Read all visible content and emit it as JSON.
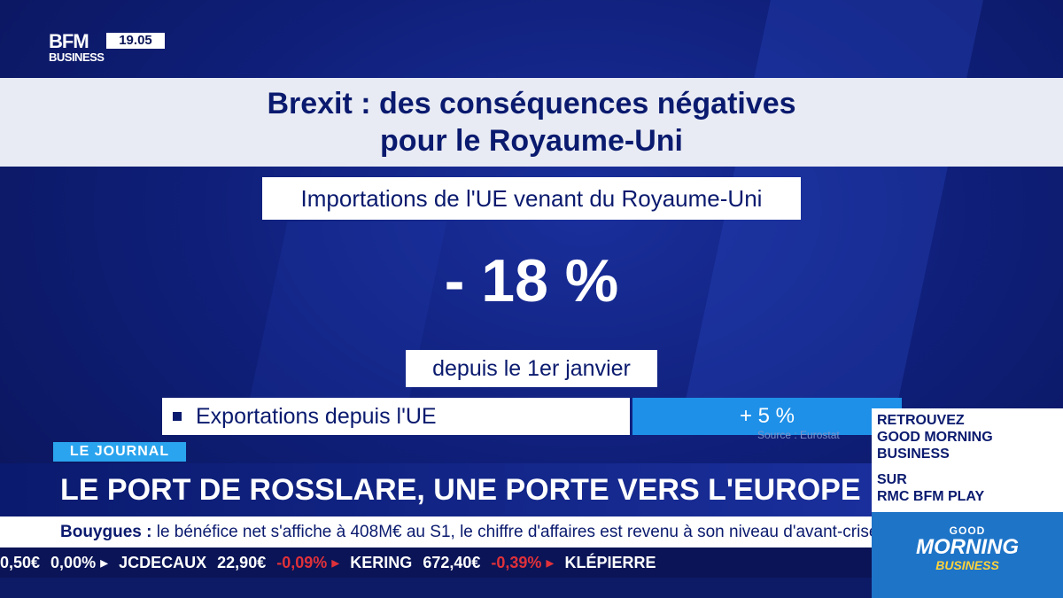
{
  "channel": {
    "logo_top": "BFM",
    "logo_bottom": "BUSINESS",
    "clock": "19.05"
  },
  "graphic": {
    "title_line1": "Brexit : des conséquences négatives",
    "title_line2": "pour le Royaume-Uni",
    "subtitle": "Importations de l'UE venant du Royaume-Uni",
    "big_value": "- 18 %",
    "since": "depuis le 1er janvier",
    "export_label": "Exportations depuis l'UE",
    "export_value": "+ 5 %",
    "source": "Source : Eurostat"
  },
  "promo": {
    "line1": "RETROUVEZ",
    "line2": "GOOD MORNING",
    "line3": "BUSINESS",
    "line4": "SUR",
    "line5": "RMC BFM PLAY",
    "logo_good": "GOOD",
    "logo_morning": "MORNING",
    "logo_business": "BUSINESS"
  },
  "lower_third": {
    "tag": "LE JOURNAL",
    "headline": "LE PORT DE ROSSLARE, UNE PORTE VERS L'EUROPE"
  },
  "news_ticker": {
    "company": "Bouygues :",
    "text": "le bénéfice net s'affiche à 408M€ au S1, le chiffre d'affaires est revenu à son niveau d'avant-crise."
  },
  "stock_ticker": {
    "items": [
      {
        "text": "0,50€",
        "cls": "pos"
      },
      {
        "text": "0,00% ▸",
        "cls": "pos"
      },
      {
        "text": "JCDECAUX",
        "cls": "pos"
      },
      {
        "text": "22,90€",
        "cls": "pos"
      },
      {
        "text": "-0,09% ▸",
        "cls": "neg"
      },
      {
        "text": "KERING",
        "cls": "pos"
      },
      {
        "text": "672,40€",
        "cls": "pos"
      },
      {
        "text": "-0,39% ▸",
        "cls": "neg"
      },
      {
        "text": "KLÉPIERRE",
        "cls": "pos"
      }
    ]
  },
  "colors": {
    "navy": "#0a1a6e",
    "accent_blue": "#1e90e8",
    "negative": "#e0313a"
  }
}
